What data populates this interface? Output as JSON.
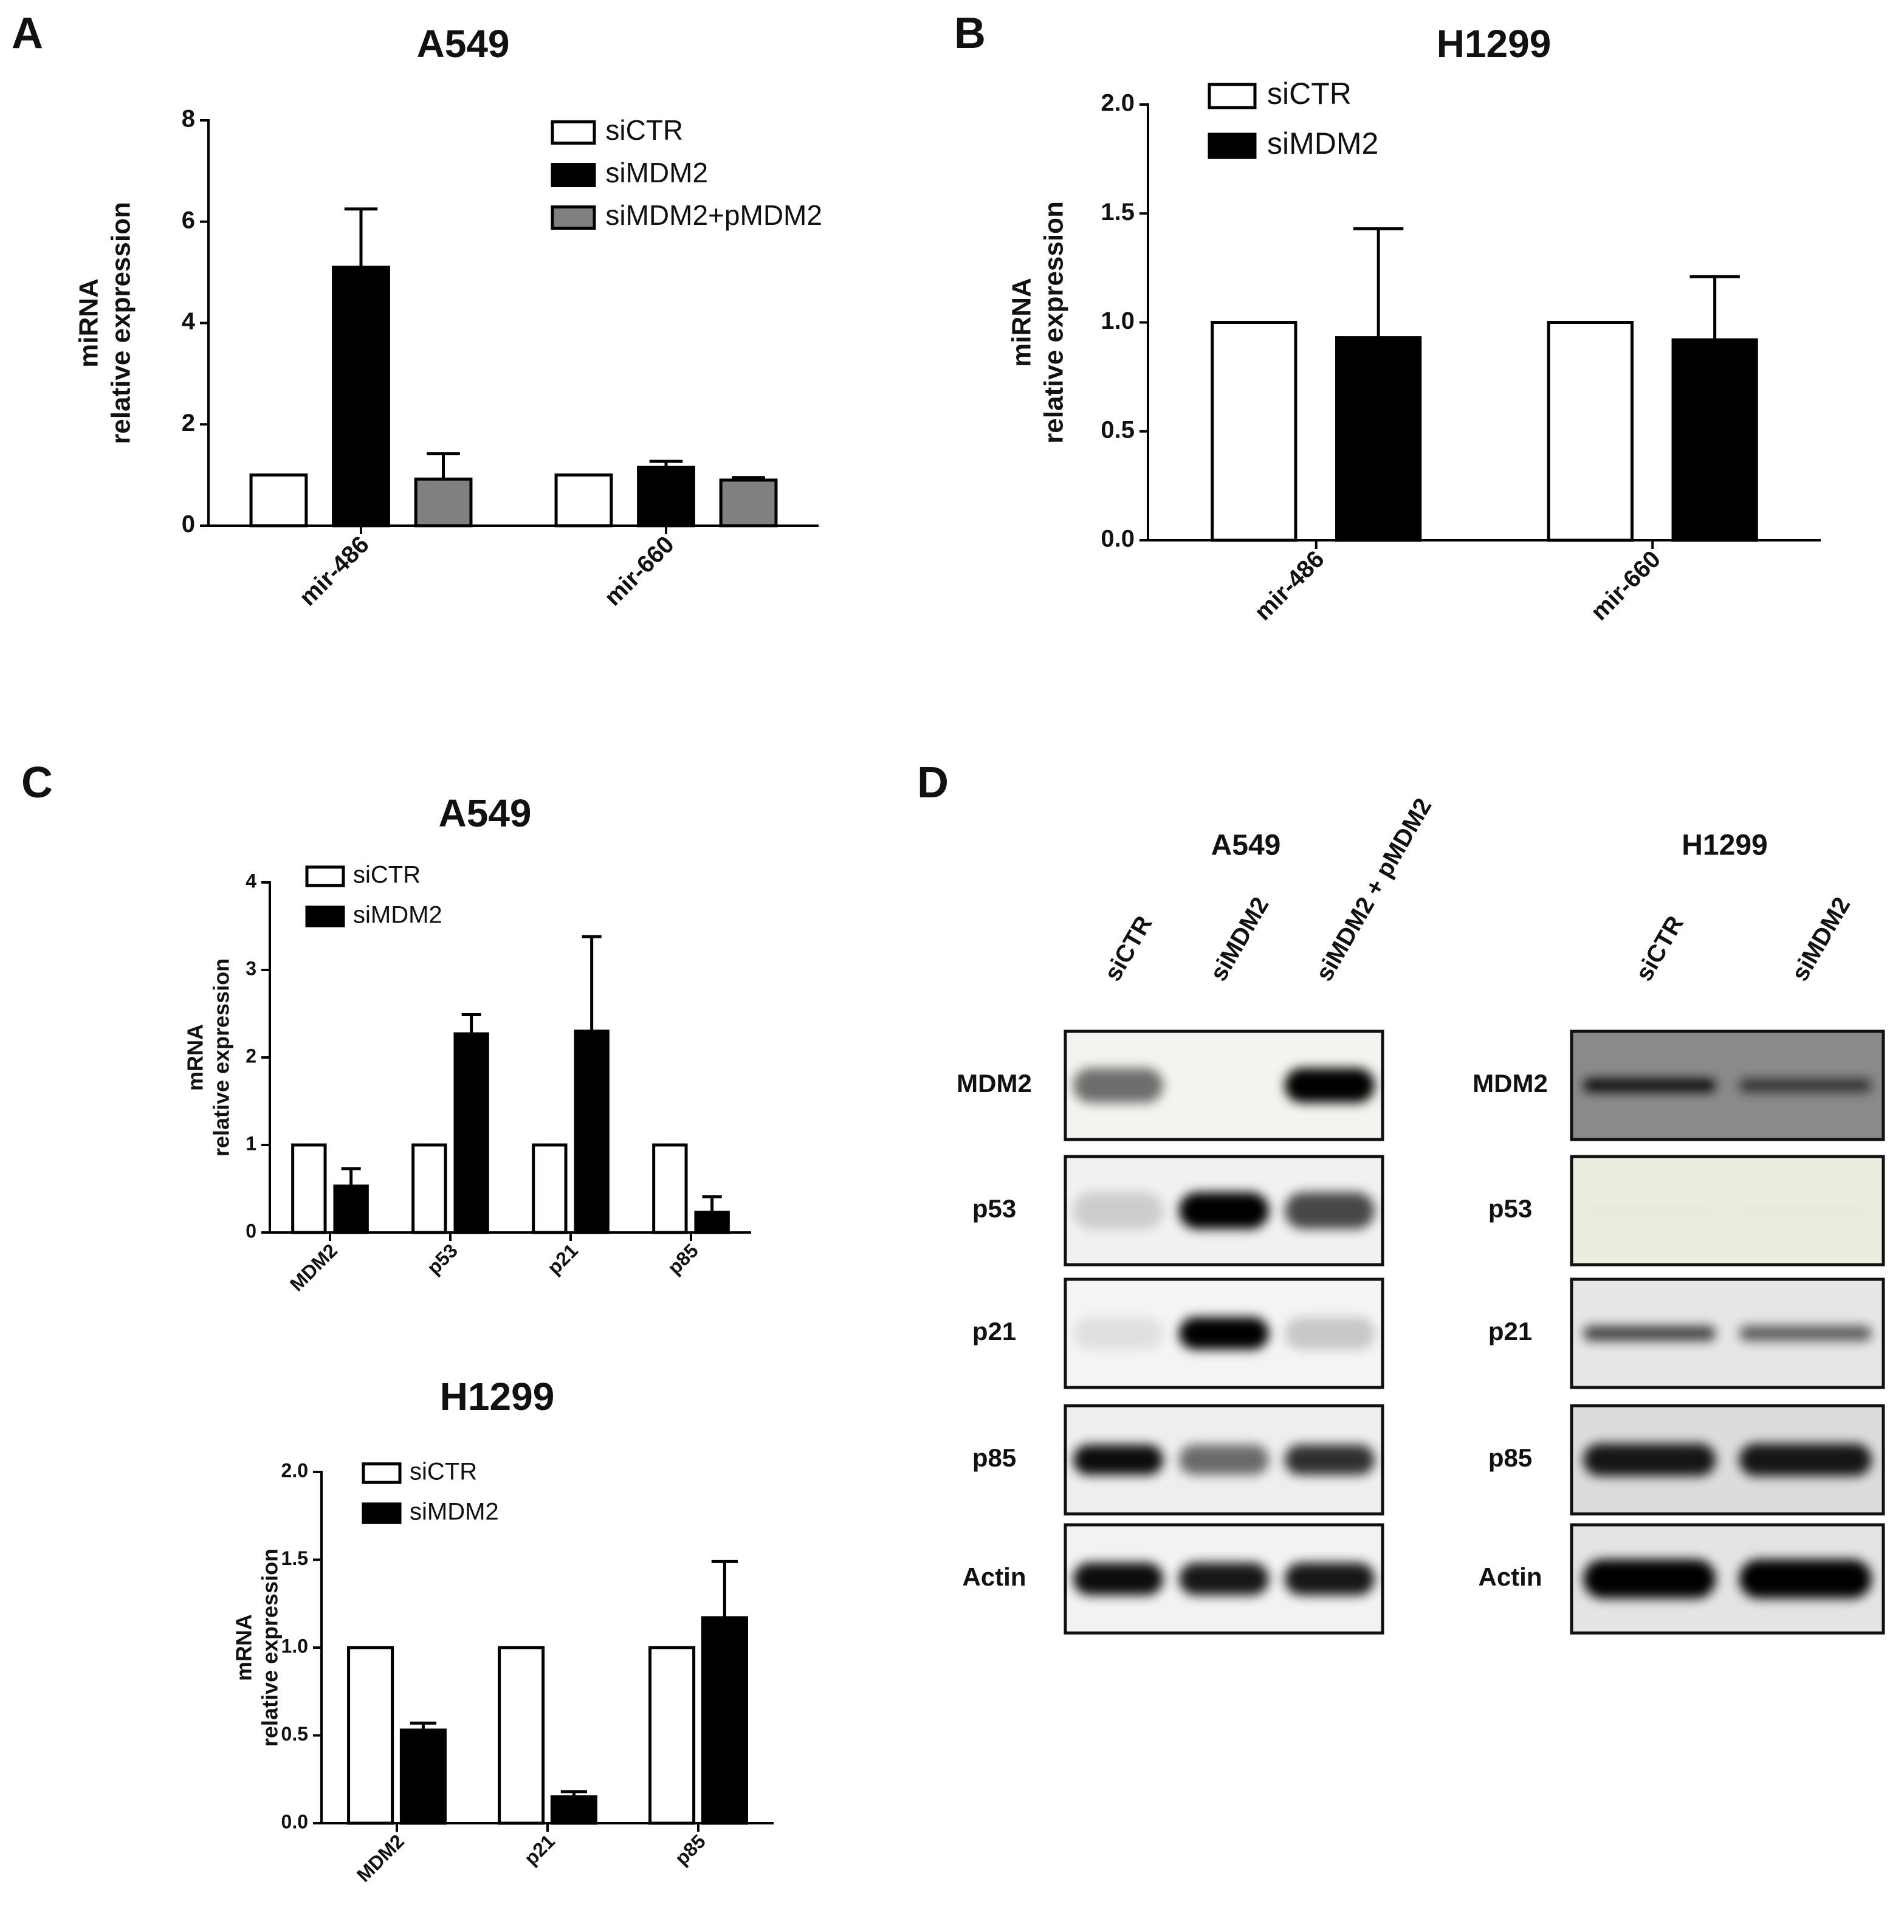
{
  "chart_data": [
    {
      "type": "bar",
      "panel": "A",
      "title": "A549",
      "ylabel": [
        "miRNA",
        "relative expression"
      ],
      "categories": [
        "mir-486",
        "mir-660"
      ],
      "series": [
        {
          "name": "siCTR",
          "color": "#ffffff",
          "values": [
            1,
            1
          ]
        },
        {
          "name": "siMDM2",
          "color": "#000000",
          "values": [
            5.1,
            1.15
          ],
          "errors": [
            1.15,
            0.12
          ]
        },
        {
          "name": "siMDM2+pMDM2",
          "color": "#808080",
          "values": [
            0.92,
            0.9
          ],
          "errors": [
            0.5,
            0.05
          ]
        }
      ],
      "ylim": [
        0,
        8
      ],
      "yticks": [
        0,
        2,
        4,
        6,
        8
      ]
    },
    {
      "type": "bar",
      "panel": "B",
      "title": "H1299",
      "ylabel": [
        "miRNA",
        "relative expression"
      ],
      "categories": [
        "mir-486",
        "mir-660"
      ],
      "series": [
        {
          "name": "siCTR",
          "color": "#ffffff",
          "values": [
            1,
            1
          ]
        },
        {
          "name": "siMDM2",
          "color": "#000000",
          "values": [
            0.93,
            0.92
          ],
          "errors": [
            0.5,
            0.29
          ]
        }
      ],
      "ylim": [
        0,
        2
      ],
      "yticks": [
        {
          "value": 0,
          "label": "0.0"
        },
        {
          "value": 0.5,
          "label": "0.5"
        },
        {
          "value": 1,
          "label": "1.0"
        },
        {
          "value": 1.5,
          "label": "1.5"
        },
        {
          "value": 2,
          "label": "2.0"
        }
      ]
    },
    {
      "type": "bar",
      "panel": "C",
      "title": "A549",
      "ylabel": [
        "mRNA",
        "relative expression"
      ],
      "categories": [
        "MDM2",
        "p53",
        "p21",
        "p85"
      ],
      "series": [
        {
          "name": "siCTR",
          "color": "#ffffff",
          "values": [
            1,
            1,
            1,
            1
          ]
        },
        {
          "name": "siMDM2",
          "color": "#000000",
          "values": [
            0.53,
            2.27,
            2.3,
            0.23
          ],
          "errors": [
            0.2,
            0.22,
            1.08,
            0.18
          ]
        }
      ],
      "ylim": [
        0,
        4
      ],
      "yticks": [
        0,
        1,
        2,
        3,
        4
      ]
    },
    {
      "type": "bar",
      "title": "H1299",
      "ylabel": [
        "mRNA",
        "relative expression"
      ],
      "categories": [
        "MDM2",
        "p21",
        "p85"
      ],
      "series": [
        {
          "name": "siCTR",
          "color": "#ffffff",
          "values": [
            1,
            1,
            1
          ]
        },
        {
          "name": "siMDM2",
          "color": "#000000",
          "values": [
            0.53,
            0.15,
            1.17
          ],
          "errors": [
            0.04,
            0.03,
            0.32
          ]
        }
      ],
      "ylim": [
        0,
        2
      ],
      "yticks": [
        {
          "value": 0,
          "label": "0.0"
        },
        {
          "value": 0.5,
          "label": "0.5"
        },
        {
          "value": 1,
          "label": "1.0"
        },
        {
          "value": 1.5,
          "label": "1.5"
        },
        {
          "value": 2,
          "label": "2.0"
        }
      ]
    }
  ],
  "blots": {
    "panel": "D",
    "blocks": [
      {
        "title": "A549",
        "lanes": [
          "siCTR",
          "siMDM2",
          "siMDM2 + pMDM2"
        ],
        "rows": [
          "MDM2",
          "p53",
          "p21",
          "p85",
          "Actin"
        ]
      },
      {
        "title": "H1299",
        "lanes": [
          "siCTR",
          "siMDM2"
        ],
        "rows": [
          "MDM2",
          "p53",
          "p21",
          "p85",
          "Actin"
        ]
      }
    ]
  }
}
